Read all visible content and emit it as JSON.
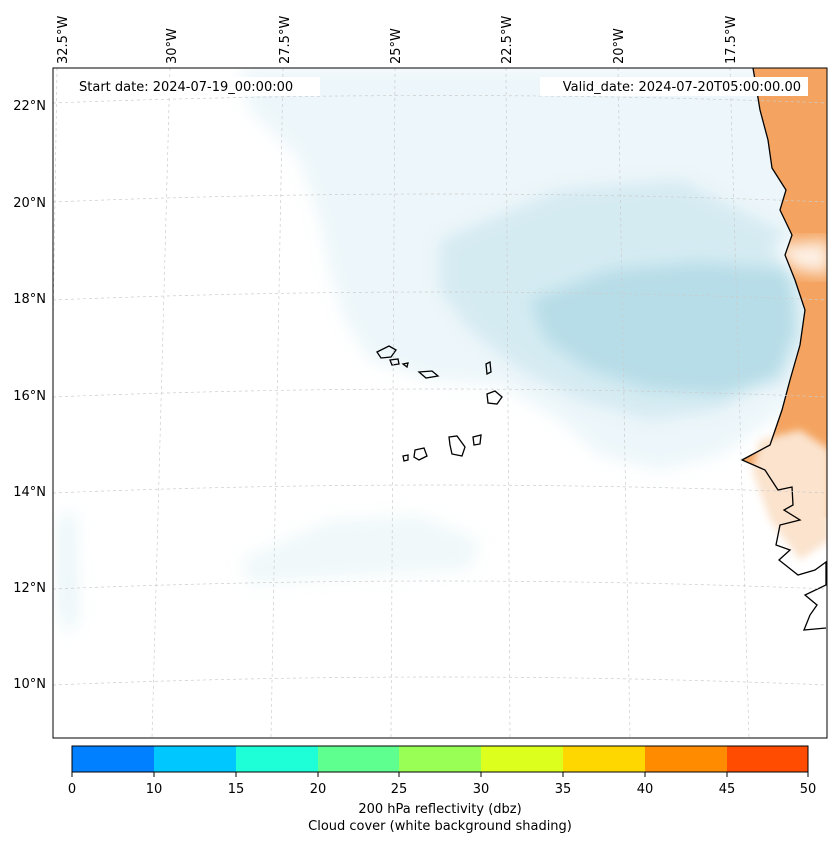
{
  "map": {
    "start_label": "Start date: 2024-07-19_00:00:00",
    "valid_label": "Valid_date: 2024-07-20T05:00:00.00",
    "lon_ticks": [
      "32.5°W",
      "30°W",
      "27.5°W",
      "25°W",
      "22.5°W",
      "20°W",
      "17.5°W"
    ],
    "lat_ticks": [
      "22°N",
      "20°N",
      "18°N",
      "16°N",
      "14°N",
      "12°N",
      "10°N"
    ],
    "colors": {
      "land": "#f4a460",
      "cloud": "#add8e6",
      "coastline": "#000000",
      "grid": "#cccccc"
    }
  },
  "colorbar": {
    "ticks": [
      "0",
      "10",
      "15",
      "20",
      "25",
      "30",
      "35",
      "40",
      "45",
      "50"
    ],
    "colors": [
      "#007fff",
      "#00c8ff",
      "#1effd8",
      "#5fff8f",
      "#99ff55",
      "#dcff1e",
      "#ffd700",
      "#ff8c00",
      "#ff4c00"
    ],
    "label_line1": "200 hPa reflectivity (dbz)",
    "label_line2": "Cloud cover (white background shading)"
  }
}
